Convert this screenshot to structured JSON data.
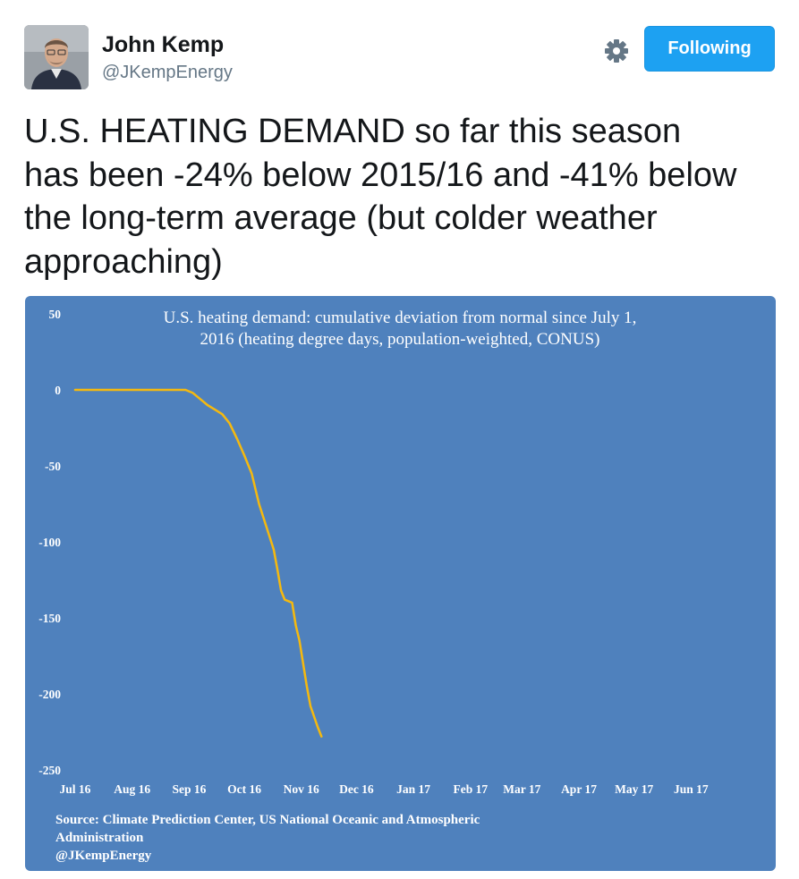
{
  "author": {
    "name": "John Kemp",
    "handle": "@JKempEnergy",
    "avatar_icon": "user-avatar-photo"
  },
  "actions": {
    "settings_icon": "gear-icon",
    "follow_label": "Following"
  },
  "tweet": {
    "lines": [
      "U.S. HEATING DEMAND so far this season",
      "has been -24% below 2015/16 and -41% below",
      "the long-term average (but colder weather",
      "approaching)"
    ]
  },
  "chart_data": {
    "type": "line",
    "title_lines": [
      "U.S. heating demand: cumulative deviation from normal since July 1,",
      "2016 (heating degree days, population-weighted, CONUS)"
    ],
    "xlabel": "",
    "ylabel": "",
    "ylim": [
      -250,
      50
    ],
    "y_ticks": [
      50,
      0,
      -50,
      -100,
      -150,
      -200,
      -250
    ],
    "x_unit": "day since Jul 1, 2016",
    "xlim": [
      0,
      365
    ],
    "x_ticks": [
      {
        "label": "Jul 16",
        "day": 0
      },
      {
        "label": "Aug 16",
        "day": 31
      },
      {
        "label": "Sep 16",
        "day": 62
      },
      {
        "label": "Oct 16",
        "day": 92
      },
      {
        "label": "Nov 16",
        "day": 123
      },
      {
        "label": "Dec 16",
        "day": 153
      },
      {
        "label": "Jan 17",
        "day": 184
      },
      {
        "label": "Feb 17",
        "day": 215
      },
      {
        "label": "Mar 17",
        "day": 243
      },
      {
        "label": "Apr 17",
        "day": 274
      },
      {
        "label": "May 17",
        "day": 304
      },
      {
        "label": "Jun 17",
        "day": 335
      }
    ],
    "grid": false,
    "series": [
      {
        "color": "#f5b90f",
        "x": [
          0,
          20,
          40,
          60,
          64,
          68,
          72,
          76,
          80,
          84,
          88,
          92,
          96,
          100,
          104,
          108,
          110,
          112,
          114,
          116,
          118,
          120,
          122,
          124,
          126,
          128,
          130,
          132,
          134
        ],
        "y": [
          0,
          0,
          0,
          0,
          -2,
          -6,
          -10,
          -13,
          -16,
          -22,
          -32,
          -43,
          -55,
          -75,
          -90,
          -105,
          -118,
          -132,
          -138,
          -139,
          -140,
          -155,
          -165,
          -180,
          -195,
          -208,
          -215,
          -222,
          -228
        ]
      }
    ],
    "source_lines": [
      "Source: Climate Prediction Center, US National Oceanic and Atmospheric",
      "Administration",
      "@JKempEnergy"
    ]
  }
}
